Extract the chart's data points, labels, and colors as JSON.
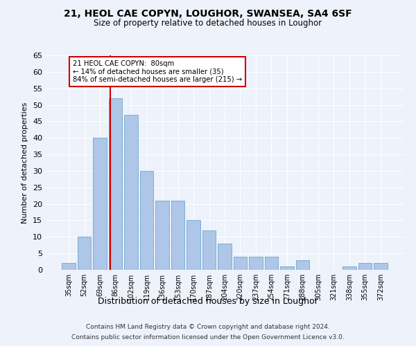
{
  "title1": "21, HEOL CAE COPYN, LOUGHOR, SWANSEA, SA4 6SF",
  "title2": "Size of property relative to detached houses in Loughor",
  "xlabel": "Distribution of detached houses by size in Loughor",
  "ylabel": "Number of detached properties",
  "categories": [
    "35sqm",
    "52sqm",
    "69sqm",
    "86sqm",
    "102sqm",
    "119sqm",
    "136sqm",
    "153sqm",
    "170sqm",
    "187sqm",
    "204sqm",
    "220sqm",
    "237sqm",
    "254sqm",
    "271sqm",
    "288sqm",
    "305sqm",
    "321sqm",
    "338sqm",
    "355sqm",
    "372sqm"
  ],
  "values": [
    2,
    10,
    40,
    52,
    47,
    30,
    21,
    21,
    15,
    12,
    8,
    4,
    4,
    4,
    1,
    3,
    0,
    0,
    1,
    2,
    2
  ],
  "bar_color": "#aec6e8",
  "bar_edgecolor": "#7aafd4",
  "vline_x_index": 2.65,
  "annotation_text_line1": "21 HEOL CAE COPYN:  80sqm",
  "annotation_text_line2": "← 14% of detached houses are smaller (35)",
  "annotation_text_line3": "84% of semi-detached houses are larger (215) →",
  "annotation_box_color": "#ffffff",
  "annotation_box_edgecolor": "#cc0000",
  "vline_color": "#cc0000",
  "ylim": [
    0,
    65
  ],
  "yticks": [
    0,
    5,
    10,
    15,
    20,
    25,
    30,
    35,
    40,
    45,
    50,
    55,
    60,
    65
  ],
  "background_color": "#eef2fb",
  "grid_color": "#ffffff",
  "footer1": "Contains HM Land Registry data © Crown copyright and database right 2024.",
  "footer2": "Contains public sector information licensed under the Open Government Licence v3.0."
}
